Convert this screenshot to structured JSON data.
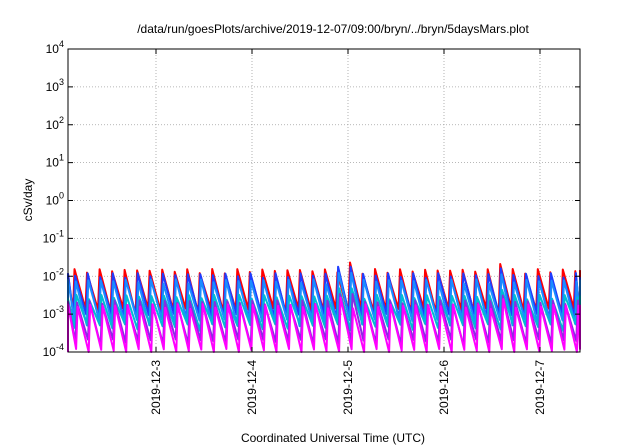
{
  "chart_data": {
    "type": "line",
    "title": "/data/run/goesPlots/archive/2019-12-07/09:00/bryn/../bryn/5daysMars.plot",
    "xlabel": "Coordinated Universal Time (UTC)",
    "ylabel": "cSv/day",
    "yscale": "log",
    "ylim": [
      0.0001,
      10000
    ],
    "xlim": [
      "2019-12-02 02:00",
      "2019-12-07 10:00"
    ],
    "grid": true,
    "x_ticks": [
      "2019-12-3",
      "2019-12-4",
      "2019-12-5",
      "2019-12-6",
      "2019-12-7"
    ],
    "y_ticks": [
      {
        "base": "10",
        "exp": "-4"
      },
      {
        "base": "10",
        "exp": "-3"
      },
      {
        "base": "10",
        "exp": "-2"
      },
      {
        "base": "10",
        "exp": "-1"
      },
      {
        "base": "10",
        "exp": "0"
      },
      {
        "base": "10",
        "exp": "1"
      },
      {
        "base": "10",
        "exp": "2"
      },
      {
        "base": "10",
        "exp": "3"
      },
      {
        "base": "10",
        "exp": "4"
      }
    ],
    "sawtooth": {
      "period_hours": 3.13,
      "series": [
        {
          "color": "#ff0000",
          "peak": 0.0135,
          "trough": 0.0012
        },
        {
          "color": "#1e3cff",
          "peak": 0.0105,
          "trough": 0.00085
        },
        {
          "color": "#1a8cff",
          "peak": 0.0072,
          "trough": 0.0006
        },
        {
          "color": "#00bcd4",
          "peak": 0.0028,
          "trough": 0.00045
        },
        {
          "color": "#8a2be2",
          "peak": 0.002,
          "trough": 0.00018
        },
        {
          "color": "#ff00ff",
          "peak": 0.0016,
          "trough": 0.0001
        }
      ],
      "notable_peaks": [
        {
          "time": "2019-12-04 23:00",
          "value": 0.023
        },
        {
          "time": "2019-12-06 14:00",
          "value": 0.021
        }
      ]
    }
  }
}
